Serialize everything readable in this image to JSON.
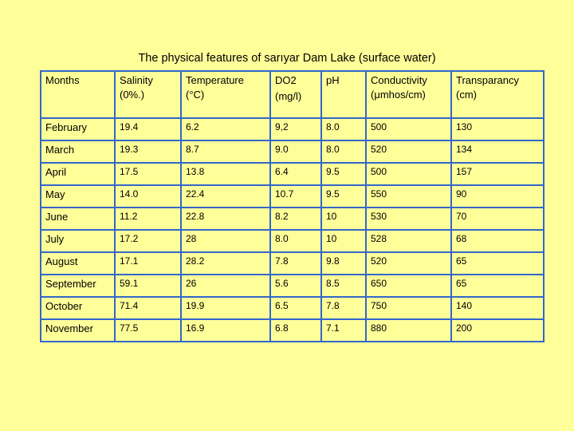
{
  "title": "The physical features of sarıyar Dam Lake (surface water)",
  "table": {
    "headers": [
      [
        "Months"
      ],
      [
        "Salinity",
        "(0%.)"
      ],
      [
        "Temperature",
        "(°C)"
      ],
      [
        "DO2",
        "(mg/l)"
      ],
      [
        "pH"
      ],
      [
        "Conductivity",
        "(μmhos/cm)"
      ],
      [
        "Transparancy",
        "(cm)"
      ]
    ],
    "rows": [
      [
        "February",
        "19.4",
        "6.2",
        "9,2",
        "8.0",
        "500",
        "130"
      ],
      [
        "March",
        "19.3",
        "8.7",
        "9.0",
        "8.0",
        "520",
        "134"
      ],
      [
        "April",
        "17.5",
        "13.8",
        "6.4",
        "9.5",
        "500",
        "157"
      ],
      [
        "May",
        "14.0",
        "22.4",
        "10.7",
        "9.5",
        "550",
        "90"
      ],
      [
        "June",
        "11.2",
        "22.8",
        "8.2",
        "10",
        "530",
        "70"
      ],
      [
        "July",
        "17.2",
        "28",
        "8.0",
        "10",
        "528",
        "68"
      ],
      [
        "August",
        "17.1",
        "28.2",
        "7.8",
        "9.8",
        "520",
        "65"
      ],
      [
        "September",
        "59.1",
        "26",
        "5.6",
        "8.5",
        "650",
        "65"
      ],
      [
        "October",
        "71.4",
        "19.9",
        "6.5",
        "7.8",
        "750",
        "140"
      ],
      [
        "November",
        "77.5",
        "16.9",
        "6.8",
        "7.1",
        "880",
        "200"
      ]
    ]
  }
}
